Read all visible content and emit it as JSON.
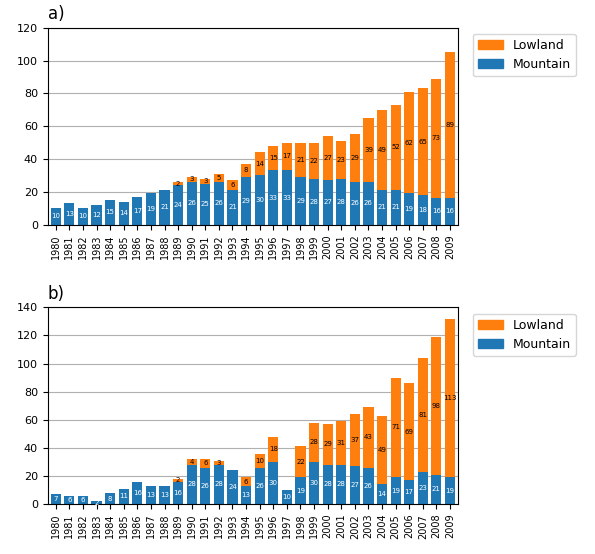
{
  "chart_data": [
    {
      "type": "bar",
      "title": "a)",
      "stacked": true,
      "data_labels": true,
      "grid": true,
      "legend": "upper left",
      "categories": [
        "1980",
        "1981",
        "1982",
        "1983",
        "1984",
        "1985",
        "1986",
        "1987",
        "1988",
        "1989",
        "1990",
        "1991",
        "1992",
        "1993",
        "1994",
        "1995",
        "1996",
        "1997",
        "1998",
        "1999",
        "2000",
        "2001",
        "2002",
        "2003",
        "2004",
        "2005",
        "2006",
        "2007",
        "2008",
        "2009"
      ],
      "series": [
        {
          "name": "Mountain",
          "values": [
            10,
            13,
            10,
            12,
            15,
            14,
            17,
            19,
            21,
            24,
            26,
            25,
            26,
            21,
            29,
            30,
            33,
            33,
            29,
            28,
            27,
            28,
            26,
            26,
            21,
            21,
            19,
            18,
            16,
            16
          ]
        },
        {
          "name": "Lowland",
          "values": [
            0,
            0,
            0,
            0,
            0,
            0,
            0,
            0,
            0,
            2,
            3,
            3,
            5,
            6,
            8,
            14,
            15,
            17,
            21,
            22,
            27,
            23,
            29,
            39,
            49,
            52,
            62,
            65,
            73,
            89
          ]
        }
      ],
      "ylim": [
        0,
        120
      ],
      "yticks": [
        0,
        20,
        40,
        60,
        80,
        100,
        120
      ]
    },
    {
      "type": "bar",
      "title": "b)",
      "stacked": true,
      "data_labels": true,
      "grid": true,
      "legend": "upper left",
      "categories": [
        "1980",
        "1981",
        "1982",
        "1983",
        "1984",
        "1985",
        "1986",
        "1987",
        "1988",
        "1989",
        "1990",
        "1991",
        "1992",
        "1993",
        "1994",
        "1995",
        "1996",
        "1997",
        "1998",
        "1999",
        "2000",
        "2001",
        "2002",
        "2003",
        "2004",
        "2005",
        "2006",
        "2007",
        "2008",
        "2009"
      ],
      "series": [
        {
          "name": "Mountain",
          "values": [
            7,
            6,
            6,
            2,
            8,
            11,
            16,
            13,
            13,
            16,
            28,
            26,
            28,
            24,
            13,
            26,
            30,
            10,
            19,
            30,
            28,
            28,
            27,
            26,
            14,
            19,
            17,
            23,
            21,
            19
          ]
        },
        {
          "name": "Lowland",
          "values": [
            0,
            0,
            0,
            0,
            0,
            0,
            0,
            0,
            0,
            2,
            4,
            6,
            3,
            0,
            6,
            10,
            18,
            0,
            22,
            28,
            29,
            31,
            37,
            43,
            49,
            71,
            69,
            81,
            98,
            113
          ]
        }
      ],
      "ylim": [
        0,
        140
      ],
      "yticks": [
        0,
        20,
        40,
        60,
        80,
        100,
        120,
        140
      ]
    }
  ]
}
